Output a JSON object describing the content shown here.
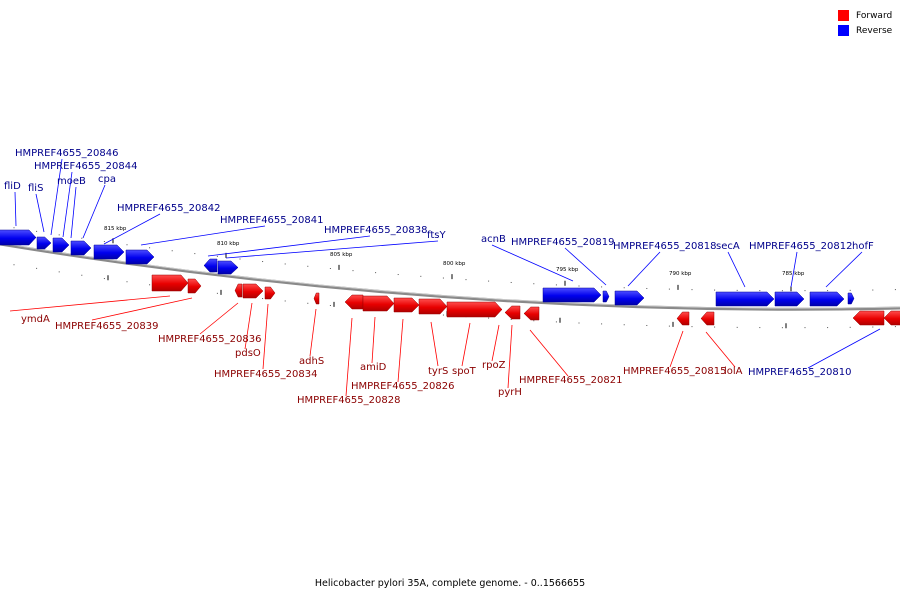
{
  "legend": {
    "forward_label": "Forward",
    "reverse_label": "Reverse",
    "forward_color": "#ff0000",
    "reverse_color": "#0000ff"
  },
  "caption": "Helicobacter pylori 35A, complete genome. - 0..1566655",
  "scale_labels": [
    "815 kbp",
    "810 kbp",
    "805 kbp",
    "800 kbp",
    "795 kbp",
    "790 kbp",
    "785 kbp"
  ],
  "reverse_gene_labels": [
    "fliD",
    "fliS",
    "HMPREF4655_20846",
    "HMPREF4655_20844",
    "moeB",
    "cpa",
    "HMPREF4655_20842",
    "HMPREF4655_20841",
    "HMPREF4655_20838",
    "ftsY",
    "acnB",
    "HMPREF4655_20819",
    "HMPREF4655_20818",
    "secA",
    "HMPREF4655_20812",
    "hofF",
    "HMPREF4655_20810"
  ],
  "forward_gene_labels": [
    "ymdA",
    "HMPREF4655_20839",
    "HMPREF4655_20836",
    "pdsO",
    "HMPREF4655_20834",
    "adhS",
    "amiD",
    "HMPREF4655_20828",
    "HMPREF4655_20826",
    "tyrS",
    "spoT",
    "rpoZ",
    "pyrH",
    "HMPREF4655_20821",
    "HMPREF4655_20815",
    "lolA"
  ]
}
